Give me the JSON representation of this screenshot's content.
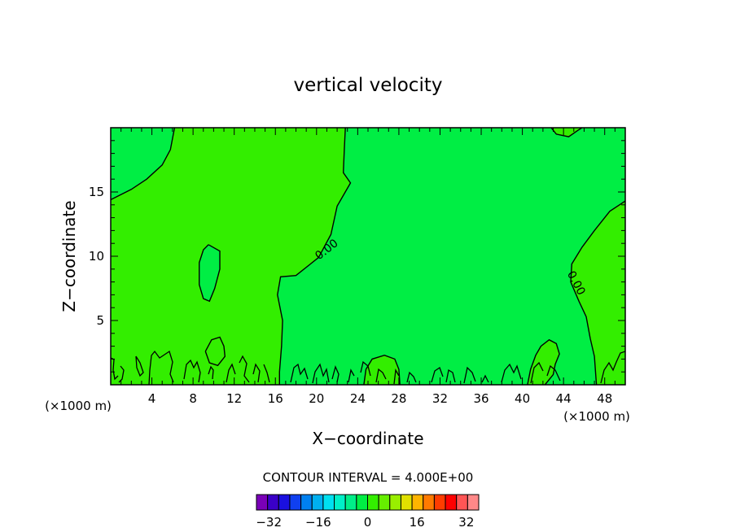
{
  "chart_data": {
    "type": "heatmap",
    "title": "vertical velocity",
    "xlabel": "X−coordinate",
    "ylabel": "Z−coordinate",
    "xlim": [
      0,
      50
    ],
    "ylim": [
      0,
      20
    ],
    "x_unit_left": "(×1000 m)",
    "x_unit_right": "(×1000 m)",
    "x_ticks": [
      {
        "value": 4,
        "label": "4"
      },
      {
        "value": 8,
        "label": "8"
      },
      {
        "value": 12,
        "label": "12"
      },
      {
        "value": 16,
        "label": "16"
      },
      {
        "value": 20,
        "label": "20"
      },
      {
        "value": 24,
        "label": "24"
      },
      {
        "value": 28,
        "label": "28"
      },
      {
        "value": 32,
        "label": "32"
      },
      {
        "value": 36,
        "label": "36"
      },
      {
        "value": 40,
        "label": "40"
      },
      {
        "value": 44,
        "label": "44"
      },
      {
        "value": 48,
        "label": "48"
      }
    ],
    "y_ticks": [
      {
        "value": 5,
        "label": "5"
      },
      {
        "value": 10,
        "label": "10"
      },
      {
        "value": 15,
        "label": "15"
      }
    ],
    "contour_interval_text": "CONTOUR INTERVAL = 4.000E+00",
    "contour_labels": [
      {
        "text": "0.00",
        "x": 21.0,
        "z": 10.5,
        "angle": -38
      },
      {
        "text": "0.00",
        "x": 45.2,
        "z": 7.9,
        "angle": 62
      }
    ],
    "background_color": "#00ee44",
    "positive_region_color": "#33ee00",
    "contours_zero": [
      [
        [
          0,
          14.4
        ],
        [
          2,
          15.2
        ],
        [
          3.5,
          16.0
        ],
        [
          5.0,
          17.1
        ],
        [
          5.8,
          18.3
        ],
        [
          6.2,
          20.0
        ]
      ],
      [
        [
          22.8,
          20.0
        ],
        [
          22.7,
          18.3
        ],
        [
          22.6,
          16.5
        ],
        [
          23.3,
          15.7
        ],
        [
          22.0,
          13.9
        ],
        [
          21.4,
          11.7
        ],
        [
          20.2,
          9.9
        ],
        [
          18.0,
          8.5
        ],
        [
          16.5,
          8.4
        ],
        [
          16.2,
          7.0
        ],
        [
          16.7,
          5.0
        ],
        [
          16.6,
          3.0
        ],
        [
          16.4,
          1.0
        ],
        [
          16.4,
          0.0
        ]
      ],
      [
        [
          9.5,
          10.9
        ],
        [
          10.6,
          10.4
        ],
        [
          10.6,
          9.0
        ],
        [
          10.1,
          7.5
        ],
        [
          9.6,
          6.5
        ],
        [
          9.0,
          6.7
        ],
        [
          8.6,
          7.8
        ],
        [
          8.6,
          9.5
        ],
        [
          9.0,
          10.5
        ],
        [
          9.5,
          10.9
        ]
      ],
      [
        [
          50,
          14.3
        ],
        [
          48.5,
          13.5
        ],
        [
          47.0,
          12.0
        ],
        [
          45.8,
          10.7
        ],
        [
          44.8,
          9.4
        ],
        [
          44.7,
          8.0
        ],
        [
          45.5,
          6.5
        ],
        [
          46.2,
          5.3
        ],
        [
          46.6,
          3.6
        ],
        [
          47.0,
          2.2
        ],
        [
          47.2,
          0.0
        ]
      ],
      [
        [
          42.8,
          20.0
        ],
        [
          43.3,
          19.5
        ],
        [
          44.5,
          19.3
        ],
        [
          45.4,
          19.8
        ],
        [
          45.8,
          20.0
        ]
      ],
      [
        [
          9.2,
          2.6
        ],
        [
          9.8,
          3.5
        ],
        [
          10.6,
          3.7
        ],
        [
          11.0,
          3.0
        ],
        [
          11.1,
          2.2
        ],
        [
          10.4,
          1.5
        ],
        [
          9.6,
          1.7
        ],
        [
          9.2,
          2.6
        ]
      ],
      [
        [
          40.5,
          0.0
        ],
        [
          40.8,
          1.2
        ],
        [
          41.3,
          2.3
        ],
        [
          41.8,
          3.0
        ],
        [
          42.6,
          3.5
        ],
        [
          43.3,
          3.2
        ],
        [
          43.6,
          2.4
        ],
        [
          43.2,
          1.6
        ],
        [
          43.0,
          0.8
        ],
        [
          42.2,
          0.0
        ]
      ],
      [
        [
          24.6,
          0.0
        ],
        [
          24.8,
          1.2
        ],
        [
          25.4,
          2.0
        ],
        [
          26.6,
          2.3
        ],
        [
          27.6,
          2.0
        ],
        [
          28.0,
          1.2
        ],
        [
          28.1,
          0.0
        ]
      ]
    ],
    "colorbar": {
      "tick_labels": [
        "−32",
        "−16",
        "0",
        "16",
        "32"
      ],
      "tick_levels": [
        -32,
        -16,
        0,
        16,
        32
      ],
      "levels_min": -36,
      "levels_max": 36,
      "colors": [
        "#7a00b8",
        "#3a00c8",
        "#1a10e0",
        "#1040f0",
        "#0080f0",
        "#00b0f0",
        "#00e0f0",
        "#00f0c8",
        "#00ee88",
        "#00ee44",
        "#33ee00",
        "#66ee00",
        "#99ee00",
        "#e0e000",
        "#ffb400",
        "#ff7a00",
        "#ff3c00",
        "#ff0000",
        "#ff5555",
        "#ff8888"
      ]
    }
  }
}
